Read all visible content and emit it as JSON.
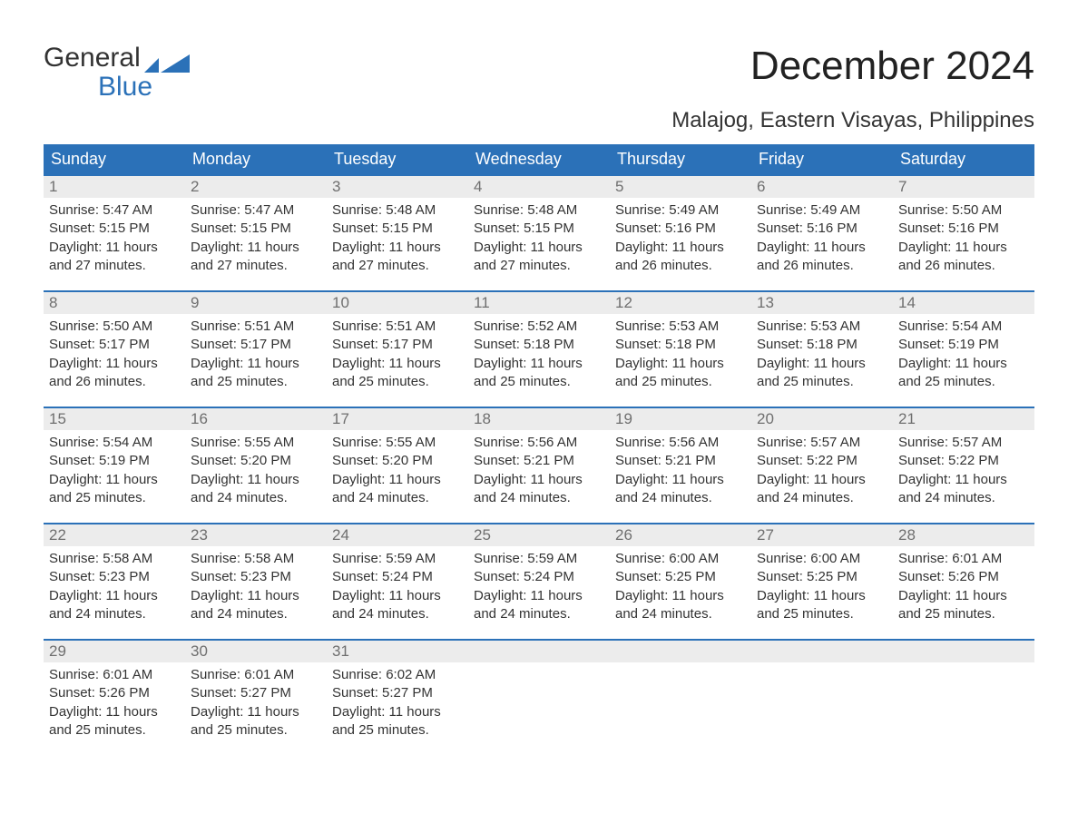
{
  "brand": {
    "line1": "General",
    "line2": "Blue",
    "flag_color": "#2b71b8"
  },
  "title": "December 2024",
  "location": "Malajog, Eastern Visayas, Philippines",
  "colors": {
    "header_bg": "#2b71b8",
    "header_fg": "#ffffff",
    "daynum_bg": "#ececec",
    "daynum_fg": "#6f6f6f",
    "row_border": "#2b71b8",
    "body_text": "#333333",
    "page_bg": "#ffffff"
  },
  "typography": {
    "month_title_fontsize": 44,
    "location_fontsize": 24,
    "weekday_fontsize": 18,
    "daynum_fontsize": 17,
    "body_fontsize": 15
  },
  "weekdays": [
    "Sunday",
    "Monday",
    "Tuesday",
    "Wednesday",
    "Thursday",
    "Friday",
    "Saturday"
  ],
  "weeks": [
    [
      {
        "n": "1",
        "sr": "Sunrise: 5:47 AM",
        "ss": "Sunset: 5:15 PM",
        "d1": "Daylight: 11 hours",
        "d2": "and 27 minutes."
      },
      {
        "n": "2",
        "sr": "Sunrise: 5:47 AM",
        "ss": "Sunset: 5:15 PM",
        "d1": "Daylight: 11 hours",
        "d2": "and 27 minutes."
      },
      {
        "n": "3",
        "sr": "Sunrise: 5:48 AM",
        "ss": "Sunset: 5:15 PM",
        "d1": "Daylight: 11 hours",
        "d2": "and 27 minutes."
      },
      {
        "n": "4",
        "sr": "Sunrise: 5:48 AM",
        "ss": "Sunset: 5:15 PM",
        "d1": "Daylight: 11 hours",
        "d2": "and 27 minutes."
      },
      {
        "n": "5",
        "sr": "Sunrise: 5:49 AM",
        "ss": "Sunset: 5:16 PM",
        "d1": "Daylight: 11 hours",
        "d2": "and 26 minutes."
      },
      {
        "n": "6",
        "sr": "Sunrise: 5:49 AM",
        "ss": "Sunset: 5:16 PM",
        "d1": "Daylight: 11 hours",
        "d2": "and 26 minutes."
      },
      {
        "n": "7",
        "sr": "Sunrise: 5:50 AM",
        "ss": "Sunset: 5:16 PM",
        "d1": "Daylight: 11 hours",
        "d2": "and 26 minutes."
      }
    ],
    [
      {
        "n": "8",
        "sr": "Sunrise: 5:50 AM",
        "ss": "Sunset: 5:17 PM",
        "d1": "Daylight: 11 hours",
        "d2": "and 26 minutes."
      },
      {
        "n": "9",
        "sr": "Sunrise: 5:51 AM",
        "ss": "Sunset: 5:17 PM",
        "d1": "Daylight: 11 hours",
        "d2": "and 25 minutes."
      },
      {
        "n": "10",
        "sr": "Sunrise: 5:51 AM",
        "ss": "Sunset: 5:17 PM",
        "d1": "Daylight: 11 hours",
        "d2": "and 25 minutes."
      },
      {
        "n": "11",
        "sr": "Sunrise: 5:52 AM",
        "ss": "Sunset: 5:18 PM",
        "d1": "Daylight: 11 hours",
        "d2": "and 25 minutes."
      },
      {
        "n": "12",
        "sr": "Sunrise: 5:53 AM",
        "ss": "Sunset: 5:18 PM",
        "d1": "Daylight: 11 hours",
        "d2": "and 25 minutes."
      },
      {
        "n": "13",
        "sr": "Sunrise: 5:53 AM",
        "ss": "Sunset: 5:18 PM",
        "d1": "Daylight: 11 hours",
        "d2": "and 25 minutes."
      },
      {
        "n": "14",
        "sr": "Sunrise: 5:54 AM",
        "ss": "Sunset: 5:19 PM",
        "d1": "Daylight: 11 hours",
        "d2": "and 25 minutes."
      }
    ],
    [
      {
        "n": "15",
        "sr": "Sunrise: 5:54 AM",
        "ss": "Sunset: 5:19 PM",
        "d1": "Daylight: 11 hours",
        "d2": "and 25 minutes."
      },
      {
        "n": "16",
        "sr": "Sunrise: 5:55 AM",
        "ss": "Sunset: 5:20 PM",
        "d1": "Daylight: 11 hours",
        "d2": "and 24 minutes."
      },
      {
        "n": "17",
        "sr": "Sunrise: 5:55 AM",
        "ss": "Sunset: 5:20 PM",
        "d1": "Daylight: 11 hours",
        "d2": "and 24 minutes."
      },
      {
        "n": "18",
        "sr": "Sunrise: 5:56 AM",
        "ss": "Sunset: 5:21 PM",
        "d1": "Daylight: 11 hours",
        "d2": "and 24 minutes."
      },
      {
        "n": "19",
        "sr": "Sunrise: 5:56 AM",
        "ss": "Sunset: 5:21 PM",
        "d1": "Daylight: 11 hours",
        "d2": "and 24 minutes."
      },
      {
        "n": "20",
        "sr": "Sunrise: 5:57 AM",
        "ss": "Sunset: 5:22 PM",
        "d1": "Daylight: 11 hours",
        "d2": "and 24 minutes."
      },
      {
        "n": "21",
        "sr": "Sunrise: 5:57 AM",
        "ss": "Sunset: 5:22 PM",
        "d1": "Daylight: 11 hours",
        "d2": "and 24 minutes."
      }
    ],
    [
      {
        "n": "22",
        "sr": "Sunrise: 5:58 AM",
        "ss": "Sunset: 5:23 PM",
        "d1": "Daylight: 11 hours",
        "d2": "and 24 minutes."
      },
      {
        "n": "23",
        "sr": "Sunrise: 5:58 AM",
        "ss": "Sunset: 5:23 PM",
        "d1": "Daylight: 11 hours",
        "d2": "and 24 minutes."
      },
      {
        "n": "24",
        "sr": "Sunrise: 5:59 AM",
        "ss": "Sunset: 5:24 PM",
        "d1": "Daylight: 11 hours",
        "d2": "and 24 minutes."
      },
      {
        "n": "25",
        "sr": "Sunrise: 5:59 AM",
        "ss": "Sunset: 5:24 PM",
        "d1": "Daylight: 11 hours",
        "d2": "and 24 minutes."
      },
      {
        "n": "26",
        "sr": "Sunrise: 6:00 AM",
        "ss": "Sunset: 5:25 PM",
        "d1": "Daylight: 11 hours",
        "d2": "and 24 minutes."
      },
      {
        "n": "27",
        "sr": "Sunrise: 6:00 AM",
        "ss": "Sunset: 5:25 PM",
        "d1": "Daylight: 11 hours",
        "d2": "and 25 minutes."
      },
      {
        "n": "28",
        "sr": "Sunrise: 6:01 AM",
        "ss": "Sunset: 5:26 PM",
        "d1": "Daylight: 11 hours",
        "d2": "and 25 minutes."
      }
    ],
    [
      {
        "n": "29",
        "sr": "Sunrise: 6:01 AM",
        "ss": "Sunset: 5:26 PM",
        "d1": "Daylight: 11 hours",
        "d2": "and 25 minutes."
      },
      {
        "n": "30",
        "sr": "Sunrise: 6:01 AM",
        "ss": "Sunset: 5:27 PM",
        "d1": "Daylight: 11 hours",
        "d2": "and 25 minutes."
      },
      {
        "n": "31",
        "sr": "Sunrise: 6:02 AM",
        "ss": "Sunset: 5:27 PM",
        "d1": "Daylight: 11 hours",
        "d2": "and 25 minutes."
      },
      null,
      null,
      null,
      null
    ]
  ]
}
